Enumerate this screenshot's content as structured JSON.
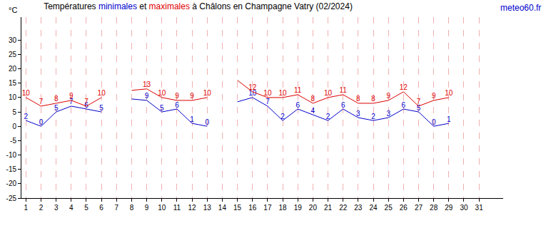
{
  "chart_data": {
    "type": "line",
    "title": "Températures minimales et maximales à Châlons en Champagne Vatry (02/2024)",
    "ylabel": "°C",
    "annotations": [
      "meteo60.fr"
    ],
    "x": [
      1,
      2,
      3,
      4,
      5,
      6,
      7,
      8,
      9,
      10,
      11,
      12,
      13,
      14,
      15,
      16,
      17,
      18,
      19,
      20,
      21,
      22,
      23,
      24,
      25,
      26,
      27,
      28,
      29,
      30,
      31
    ],
    "series": [
      {
        "name": "minimales",
        "color": "#0000cc",
        "values": [
          2,
          0,
          5,
          7,
          6,
          5,
          null,
          9.5,
          9,
          5,
          6,
          1,
          0,
          null,
          8.5,
          10,
          7,
          2,
          6,
          4,
          2,
          6,
          3,
          2,
          3,
          6,
          5,
          0,
          1,
          null,
          null
        ],
        "value_labels": [
          "2",
          "0",
          "5",
          "7",
          "6",
          "5",
          null,
          null,
          "9",
          "5",
          "6",
          "1",
          "0",
          null,
          null,
          "10",
          "7",
          "2",
          "6",
          "4",
          "2",
          "6",
          "3",
          "2",
          "3",
          "6",
          "5",
          "0",
          "1",
          null,
          null
        ]
      },
      {
        "name": "maximales",
        "color": "#dd0000",
        "values": [
          10,
          7,
          8,
          9,
          7,
          10,
          null,
          12.5,
          13,
          10,
          9,
          9,
          10,
          null,
          16,
          12,
          10,
          10,
          11,
          8,
          10,
          11,
          8,
          8,
          9,
          12,
          7,
          9,
          10,
          null,
          null
        ],
        "value_labels": [
          "10",
          "7",
          "8",
          "9",
          "7",
          "10",
          null,
          null,
          "13",
          "10",
          "9",
          "9",
          "10",
          null,
          null,
          "12",
          "10",
          "10",
          "11",
          "8",
          "10",
          "11",
          "8",
          "8",
          "9",
          "12",
          "7",
          "9",
          "10",
          null,
          null
        ]
      }
    ],
    "xlim": [
      0.7,
      32.6
    ],
    "xticks": [
      1,
      2,
      3,
      4,
      5,
      6,
      7,
      8,
      9,
      10,
      11,
      12,
      13,
      14,
      15,
      16,
      17,
      18,
      19,
      20,
      21,
      22,
      23,
      24,
      25,
      26,
      27,
      28,
      29,
      30,
      31
    ],
    "ylim": [
      -25,
      38
    ],
    "yticks": [
      -25,
      -20,
      -15,
      -10,
      -5,
      0,
      5,
      10,
      15,
      20,
      25,
      30
    ],
    "grid": true,
    "data_labels": true
  }
}
